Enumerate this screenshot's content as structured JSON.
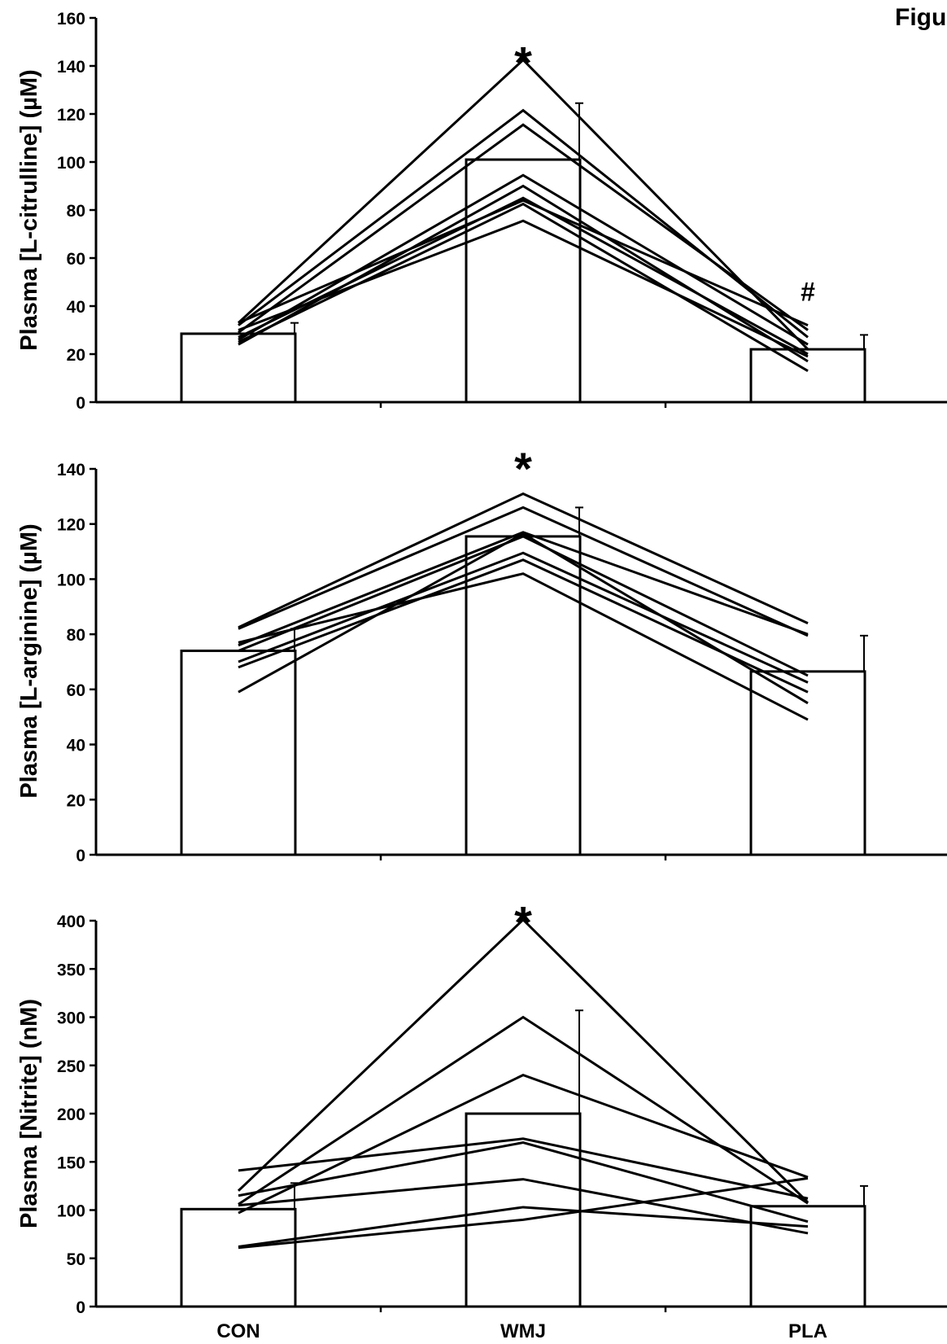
{
  "figure_label": "Figu",
  "chart_data": [
    {
      "type": "bar",
      "categories": [
        "CON",
        "WMJ",
        "PLA"
      ],
      "ylabel": "Plasma [L-citrulline] (µM)",
      "ylim": [
        0,
        160
      ],
      "yticks": [
        "0",
        "20",
        "40",
        "60",
        "80",
        "100",
        "120",
        "140",
        "160"
      ],
      "bar_means": [
        28.5,
        101,
        22
      ],
      "error_upper": [
        33,
        124.5,
        28
      ],
      "markers": [
        {
          "category": "WMJ",
          "symbol": "*"
        },
        {
          "category": "PLA",
          "symbol": "#"
        }
      ],
      "series": [
        {
          "values": [
            33,
            142.5,
            22
          ]
        },
        {
          "values": [
            32,
            121.5,
            27
          ]
        },
        {
          "values": [
            29,
            115.5,
            30
          ]
        },
        {
          "values": [
            26,
            94.5,
            24
          ]
        },
        {
          "values": [
            24,
            90,
            17
          ]
        },
        {
          "values": [
            27,
            85,
            20
          ]
        },
        {
          "values": [
            25,
            82.5,
            13
          ]
        },
        {
          "values": [
            30,
            75.5,
            19
          ]
        },
        {
          "values": [
            33,
            84,
            32
          ]
        }
      ]
    },
    {
      "type": "bar",
      "categories": [
        "CON",
        "WMJ",
        "PLA"
      ],
      "ylabel": "Plasma [L-arginine] (µM)",
      "ylim": [
        0,
        140
      ],
      "yticks": [
        "0",
        "20",
        "40",
        "60",
        "80",
        "100",
        "120",
        "140"
      ],
      "bar_means": [
        74,
        115.5,
        66.5
      ],
      "error_upper": [
        82,
        126,
        79.5
      ],
      "markers": [
        {
          "category": "WMJ",
          "symbol": "*"
        }
      ],
      "series": [
        {
          "values": [
            82.5,
            131,
            84
          ]
        },
        {
          "values": [
            82,
            126,
            79.5
          ]
        },
        {
          "values": [
            76,
            117,
            80
          ]
        },
        {
          "values": [
            74,
            115.5,
            65
          ]
        },
        {
          "values": [
            70,
            109.5,
            62.5
          ]
        },
        {
          "values": [
            68,
            107,
            59
          ]
        },
        {
          "values": [
            59,
            116.5,
            55
          ]
        },
        {
          "values": [
            77,
            102,
            49
          ]
        }
      ]
    },
    {
      "type": "bar",
      "categories": [
        "CON",
        "WMJ",
        "PLA"
      ],
      "ylabel": "Plasma [Nitrite] (nM)",
      "ylim": [
        0,
        400
      ],
      "yticks": [
        "0",
        "50",
        "100",
        "150",
        "200",
        "250",
        "300",
        "350",
        "400"
      ],
      "bar_means": [
        101,
        200,
        104
      ],
      "error_upper": [
        128,
        307,
        125
      ],
      "markers": [
        {
          "category": "WMJ",
          "symbol": "*"
        }
      ],
      "series": [
        {
          "values": [
            120,
            401,
            108
          ]
        },
        {
          "values": [
            106,
            300,
            107
          ]
        },
        {
          "values": [
            97,
            240,
            134
          ]
        },
        {
          "values": [
            141,
            174,
            112
          ]
        },
        {
          "values": [
            115,
            170,
            88
          ]
        },
        {
          "values": [
            105,
            132,
            76
          ]
        },
        {
          "values": [
            62,
            103,
            83
          ]
        },
        {
          "values": [
            61,
            90,
            133
          ]
        }
      ]
    }
  ]
}
